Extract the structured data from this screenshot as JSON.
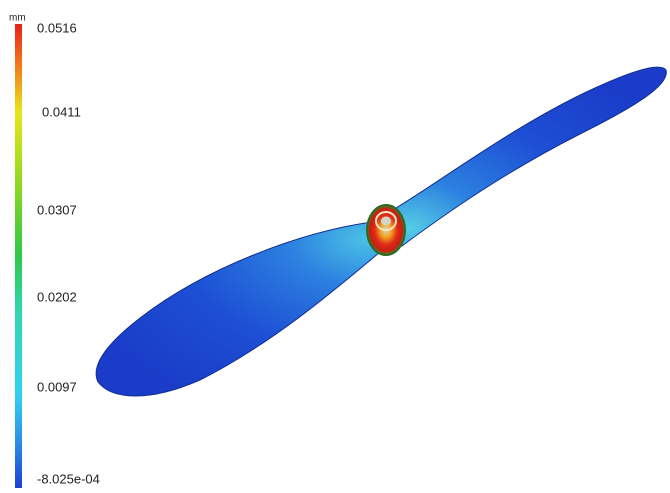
{
  "legend": {
    "unit": "mm",
    "labels": [
      "0.0516",
      "0.0411",
      "0.0307",
      "0.0202",
      "0.0097",
      "-8.025e-04"
    ]
  }
}
